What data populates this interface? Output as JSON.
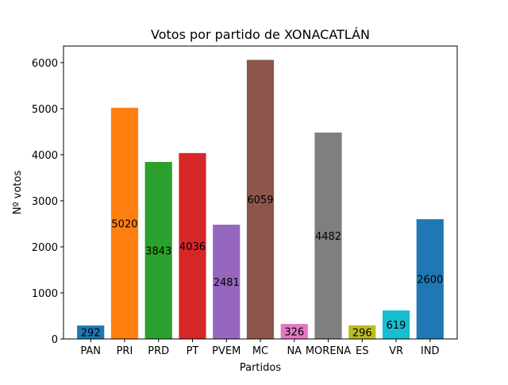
{
  "chart_data": {
    "type": "bar",
    "title": "Votos por partido de XONACATLÁN",
    "xlabel": "Partidos",
    "ylabel": "Nº votos",
    "categories": [
      "PAN",
      "PRI",
      "PRD",
      "PT",
      "PVEM",
      "MC",
      "NA",
      "MORENA",
      "ES",
      "VR",
      "IND"
    ],
    "values": [
      292,
      5020,
      3843,
      4036,
      2481,
      6059,
      326,
      4482,
      296,
      619,
      2600
    ],
    "data_labels": [
      "292",
      "5020",
      "3843",
      "4036",
      "2481",
      "6059",
      "326",
      "4482",
      "296",
      "619",
      "2600"
    ],
    "colors": [
      "#1f77b4",
      "#ff7f0e",
      "#2ca02c",
      "#d62728",
      "#9467bd",
      "#8c564b",
      "#e377c2",
      "#7f7f7f",
      "#bcbd22",
      "#17becf",
      "#1f77b4"
    ],
    "ylim": [
      0,
      6360
    ],
    "yticks": [
      0,
      1000,
      2000,
      3000,
      4000,
      5000,
      6000
    ],
    "ytick_labels": [
      "0",
      "1000",
      "2000",
      "3000",
      "4000",
      "5000",
      "6000"
    ],
    "grid": false,
    "legend": false
  }
}
